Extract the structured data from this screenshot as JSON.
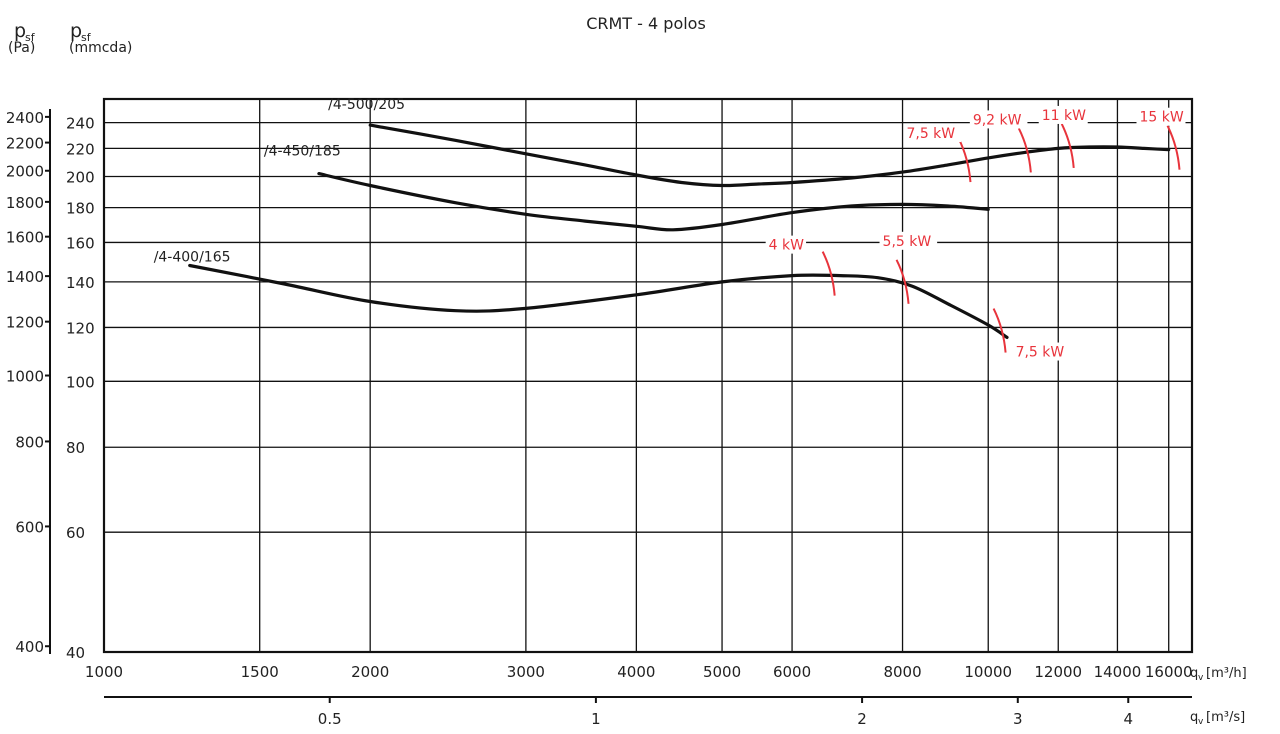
{
  "chart_data": {
    "type": "line",
    "title": "CRMT - 4 polos",
    "xscale": "log",
    "yscale": "log",
    "xlim": [
      1000,
      17000
    ],
    "ylim_mmcda": [
      40,
      260
    ],
    "yaxis_left": {
      "symbol": "p",
      "subscript": "sf",
      "unit": "(Pa)",
      "ticks": [
        400,
        600,
        800,
        1000,
        1200,
        1400,
        1600,
        1800,
        2000,
        2200,
        2400
      ]
    },
    "yaxis_right": {
      "symbol": "p",
      "subscript": "sf",
      "unit": "(mmcda)",
      "ticks": [
        40,
        60,
        80,
        100,
        120,
        140,
        160,
        180,
        200,
        220,
        240
      ]
    },
    "xaxis_top": {
      "label_prefix": "q",
      "label_sub": "v",
      "label_unit": "[m³/h]",
      "ticks": [
        1000,
        1500,
        2000,
        3000,
        4000,
        5000,
        6000,
        8000,
        10000,
        12000,
        14000,
        16000
      ]
    },
    "xaxis_bottom": {
      "label_prefix": "q",
      "label_sub": "v",
      "label_unit": "[m³/s]",
      "ticks": [
        0.5,
        1,
        2,
        3,
        4
      ],
      "tick_labels": [
        "0.5",
        "1",
        "2",
        "3",
        "4"
      ]
    },
    "grid": true,
    "series": [
      {
        "name": "/4-400/165",
        "x": [
          1250,
          1600,
          2000,
          2500,
          3000,
          4000,
          5000,
          6000,
          6800,
          7500,
          8200,
          9000,
          10000,
          10500
        ],
        "y": [
          148,
          139,
          131,
          127,
          128,
          134,
          140,
          143,
          143,
          142,
          138,
          130,
          121,
          116
        ]
      },
      {
        "name": "/4-450/185",
        "x": [
          1750,
          2000,
          2500,
          3000,
          3500,
          4000,
          4400,
          5000,
          6000,
          7000,
          8000,
          9000,
          10000
        ],
        "y": [
          202,
          194,
          183,
          176,
          172,
          169,
          167,
          170,
          177,
          181,
          182,
          181,
          179
        ]
      },
      {
        "name": "/4-500/205",
        "x": [
          2000,
          2500,
          3000,
          3500,
          4000,
          4500,
          5000,
          5500,
          6000,
          7000,
          8000,
          9000,
          10000,
          11000,
          12000,
          13000,
          14000,
          15000,
          16000
        ],
        "y": [
          238,
          226,
          216,
          208,
          201,
          196,
          194,
          195,
          196,
          199,
          203,
          208,
          213,
          217,
          220,
          221,
          221,
          220,
          219
        ]
      }
    ],
    "power_markers": [
      {
        "label": "4 kW",
        "x": 6600
      },
      {
        "label": "5,5 kW",
        "x": 8000
      },
      {
        "label": "7,5 kW",
        "x": 10300
      },
      {
        "label": "7,5 kW",
        "x": 9400
      },
      {
        "label": "9,2 kW",
        "x": 11000
      },
      {
        "label": "11 kW",
        "x": 12300
      },
      {
        "label": "15 kW",
        "x": 16200
      }
    ]
  }
}
